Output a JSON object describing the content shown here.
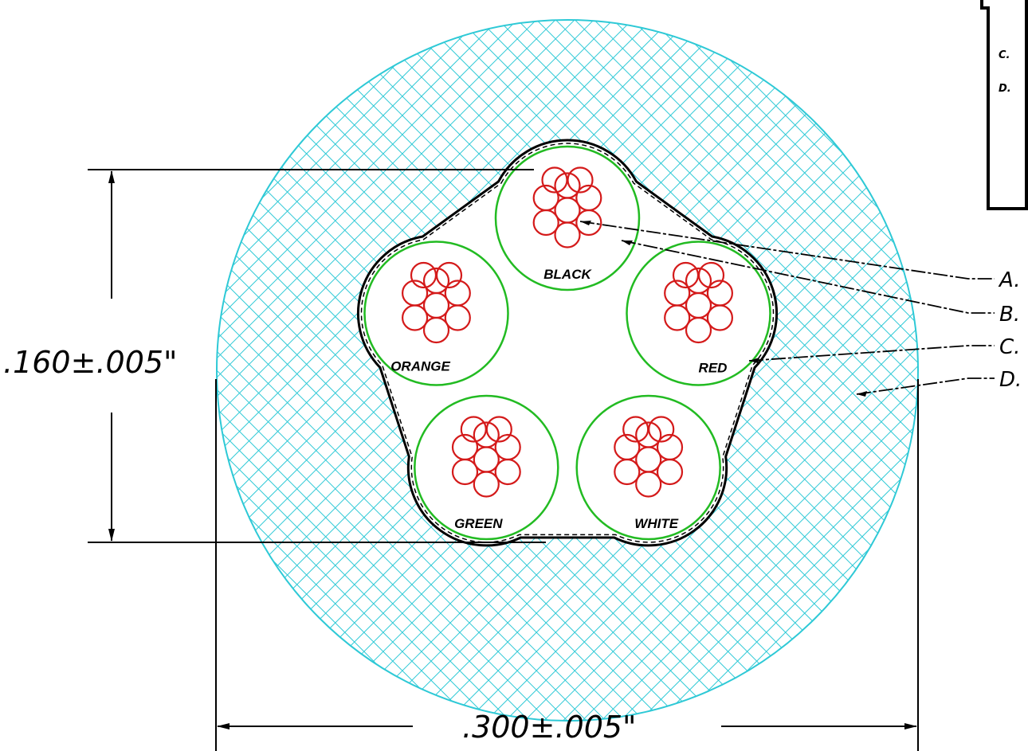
{
  "dimensions": {
    "inner": ".160±.005\"",
    "outer": ".300±.005\""
  },
  "callouts": [
    "A.",
    "B.",
    "C.",
    "D."
  ],
  "legend": [
    "C.",
    "D."
  ],
  "conductors": [
    "BLACK",
    "RED",
    "WHITE",
    "GREEN",
    "ORANGE"
  ],
  "colors": {
    "jacket": "#2ec9d6",
    "insulation": "#22bb22",
    "strand": "#d41a1a",
    "shield": "#000000"
  }
}
